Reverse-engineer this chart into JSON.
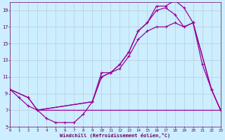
{
  "xlabel": "Windchill (Refroidissement éolien,°C)",
  "bg_color": "#cceeff",
  "grid_color": "#b8ccd8",
  "line_color": "#990099",
  "xlim": [
    0,
    23
  ],
  "ylim": [
    5,
    20
  ],
  "xticks": [
    0,
    1,
    2,
    3,
    4,
    5,
    6,
    7,
    8,
    9,
    10,
    11,
    12,
    13,
    14,
    15,
    16,
    17,
    18,
    19,
    20,
    21,
    22,
    23
  ],
  "yticks": [
    5,
    7,
    9,
    11,
    13,
    15,
    17,
    19
  ],
  "curve1_x": [
    0,
    1,
    2,
    3,
    4,
    5,
    6,
    7,
    8,
    9,
    10,
    11,
    12,
    13,
    14,
    15,
    16,
    17,
    18,
    19,
    20,
    21,
    22,
    23
  ],
  "curve1_y": [
    9.5,
    8.5,
    7.5,
    7.0,
    6.0,
    5.5,
    5.5,
    5.5,
    6.5,
    8.0,
    11.5,
    11.5,
    12.5,
    14.0,
    16.5,
    17.5,
    19.5,
    19.5,
    20.2,
    19.3,
    17.5,
    12.5,
    9.5,
    7.0
  ],
  "curve2_x": [
    0,
    2,
    3,
    9,
    10,
    11,
    12,
    13,
    14,
    15,
    16,
    17,
    18,
    19,
    20,
    22,
    23
  ],
  "curve2_y": [
    9.5,
    8.5,
    7.0,
    8.0,
    11.0,
    11.5,
    12.5,
    14.0,
    16.5,
    17.5,
    19.0,
    19.3,
    18.5,
    17.0,
    17.5,
    9.5,
    7.0
  ],
  "curve3_x": [
    0,
    2,
    3,
    9,
    10,
    11,
    12,
    13,
    14,
    15,
    16,
    17,
    18,
    19,
    20,
    22,
    23
  ],
  "curve3_y": [
    9.5,
    8.5,
    7.0,
    8.0,
    11.0,
    11.5,
    12.0,
    13.5,
    15.5,
    16.5,
    17.0,
    17.0,
    17.5,
    17.0,
    17.5,
    9.5,
    7.0
  ],
  "hline_x": [
    3,
    19
  ],
  "hline_y": [
    7.0,
    7.0
  ],
  "hline2_x": [
    19,
    23
  ],
  "hline2_y": [
    7.0,
    7.0
  ]
}
